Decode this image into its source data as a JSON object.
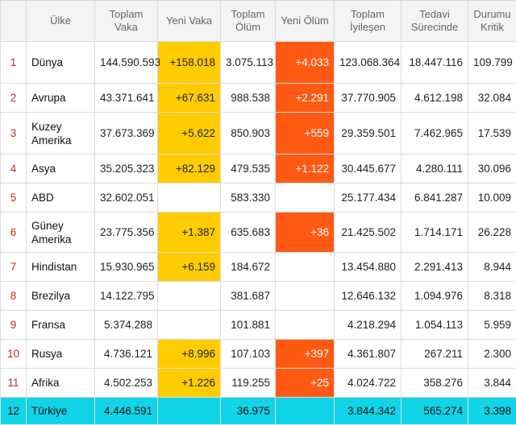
{
  "headers": {
    "rank": "",
    "country": "Ülke",
    "total_cases": "Toplam Vaka",
    "new_cases": "Yeni Vaka",
    "total_deaths": "Toplam Ölüm",
    "new_deaths": "Yeni Ölüm",
    "total_recovered": "Toplam İyileşen",
    "active": "Tedavi Sürecinde",
    "critical": "Durumu Kritik"
  },
  "rows": [
    {
      "rank": "1",
      "country": "Dünya",
      "total_cases": "144.590.593",
      "new_cases": "+158.018",
      "total_deaths": "3.075.113",
      "new_deaths": "+4.033",
      "total_recovered": "123.068.364",
      "active": "18.447.116",
      "critical": "109.799"
    },
    {
      "rank": "2",
      "country": "Avrupa",
      "total_cases": "43.371.641",
      "new_cases": "+67.631",
      "total_deaths": "988.538",
      "new_deaths": "+2.291",
      "total_recovered": "37.770.905",
      "active": "4.612.198",
      "critical": "32.084"
    },
    {
      "rank": "3",
      "country": "Kuzey Amerika",
      "total_cases": "37.673.369",
      "new_cases": "+5.622",
      "total_deaths": "850.903",
      "new_deaths": "+559",
      "total_recovered": "29.359.501",
      "active": "7.462.965",
      "critical": "17.539"
    },
    {
      "rank": "4",
      "country": "Asya",
      "total_cases": "35.205.323",
      "new_cases": "+82.129",
      "total_deaths": "479.535",
      "new_deaths": "+1.122",
      "total_recovered": "30.445.677",
      "active": "4.280.111",
      "critical": "30.096"
    },
    {
      "rank": "5",
      "country": "ABD",
      "total_cases": "32.602.051",
      "new_cases": "",
      "total_deaths": "583.330",
      "new_deaths": "",
      "total_recovered": "25.177.434",
      "active": "6.841.287",
      "critical": "10.009"
    },
    {
      "rank": "6",
      "country": "Güney Amerika",
      "total_cases": "23.775.356",
      "new_cases": "+1.387",
      "total_deaths": "635.683",
      "new_deaths": "+36",
      "total_recovered": "21.425.502",
      "active": "1.714.171",
      "critical": "26.228"
    },
    {
      "rank": "7",
      "country": "Hindistan",
      "total_cases": "15.930.965",
      "new_cases": "+6.159",
      "total_deaths": "184.672",
      "new_deaths": "",
      "total_recovered": "13.454.880",
      "active": "2.291.413",
      "critical": "8.944"
    },
    {
      "rank": "8",
      "country": "Brezilya",
      "total_cases": "14.122.795",
      "new_cases": "",
      "total_deaths": "381.687",
      "new_deaths": "",
      "total_recovered": "12.646.132",
      "active": "1.094.976",
      "critical": "8.318"
    },
    {
      "rank": "9",
      "country": "Fransa",
      "total_cases": "5.374.288",
      "new_cases": "",
      "total_deaths": "101.881",
      "new_deaths": "",
      "total_recovered": "4.218.294",
      "active": "1.054.113",
      "critical": "5.959"
    },
    {
      "rank": "10",
      "country": "Rusya",
      "total_cases": "4.736.121",
      "new_cases": "+8.996",
      "total_deaths": "107.103",
      "new_deaths": "+397",
      "total_recovered": "4.361.807",
      "active": "267.211",
      "critical": "2.300"
    },
    {
      "rank": "11",
      "country": "Afrika",
      "total_cases": "4.502.253",
      "new_cases": "+1.226",
      "total_deaths": "119.255",
      "new_deaths": "+25",
      "total_recovered": "4.024.722",
      "active": "358.276",
      "critical": "3.844"
    },
    {
      "rank": "12",
      "country": "Türkiye",
      "total_cases": "4.446.591",
      "new_cases": "",
      "total_deaths": "36.975",
      "new_deaths": "",
      "total_recovered": "3.844.342",
      "active": "565.274",
      "critical": "3.398"
    }
  ],
  "colors": {
    "new_cases_bg": "#ffcc00",
    "new_deaths_bg": "#ff5a14",
    "highlight_row_bg": "#12d4e8",
    "rank_text": "#c62828"
  }
}
